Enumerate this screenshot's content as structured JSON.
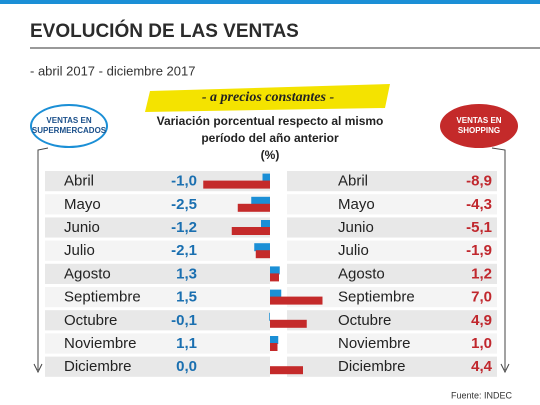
{
  "chart_data": {
    "type": "bar",
    "title": "EVOLUCIÓN DE LAS VENTAS",
    "subtitle": "- abril 2017 - diciembre 2017",
    "banner": "- a precios constantes -",
    "description": [
      "Variación porcentual respecto al mismo",
      "período del año anterior",
      "(%)"
    ],
    "source": "Fuente: INDEC",
    "categories": [
      "Abril",
      "Mayo",
      "Junio",
      "Julio",
      "Agosto",
      "Septiembre",
      "Octubre",
      "Noviembre",
      "Diciembre"
    ],
    "series": [
      {
        "name": "VENTAS EN SUPERMERCADOS",
        "color": "#1b8fd6",
        "label_color": "#1a6fb0",
        "values": [
          -1.0,
          -2.5,
          -1.2,
          -2.1,
          1.3,
          1.5,
          -0.1,
          1.1,
          0.0
        ],
        "value_labels": [
          "-1,0",
          "-2,5",
          "-1,2",
          "-2,1",
          "1,3",
          "1,5",
          "-0,1",
          "1,1",
          "0,0"
        ]
      },
      {
        "name": "VENTAS EN SHOPPING",
        "color": "#c42a2a",
        "label_color": "#c0272d",
        "values": [
          -8.9,
          -4.3,
          -5.1,
          -1.9,
          1.2,
          7.0,
          4.9,
          1.0,
          4.4
        ],
        "value_labels": [
          "-8,9",
          "-4,3",
          "-5,1",
          "-1,9",
          "1,2",
          "7,0",
          "4,9",
          "1,0",
          "4,4"
        ]
      }
    ]
  }
}
